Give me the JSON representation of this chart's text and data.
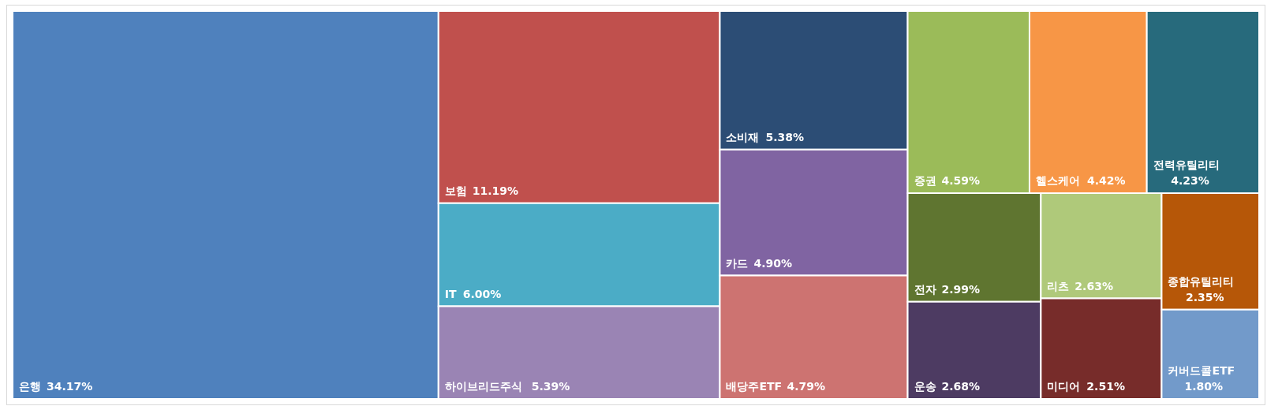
{
  "chart_data": {
    "type": "other",
    "categories": [
      "은행",
      "보험",
      "IT",
      "하이브리드주식",
      "소비재",
      "카드",
      "배당주ETF",
      "증권",
      "헬스케어",
      "전력유틸리티",
      "전자",
      "운송",
      "리츠",
      "미디어",
      "종합유틸리티",
      "커버드콜ETF"
    ],
    "values": [
      34.17,
      11.19,
      6.0,
      5.39,
      5.38,
      4.9,
      4.79,
      4.59,
      4.42,
      4.23,
      2.99,
      2.68,
      2.63,
      2.51,
      2.35,
      1.8
    ],
    "value_labels": [
      "34.17%",
      "11.19%",
      "6.00%",
      "5.39%",
      "5.38%",
      "4.90%",
      "4.79%",
      "4.59%",
      "4.42%",
      "4.23%",
      "2.99%",
      "2.68%",
      "2.63%",
      "2.51%",
      "2.35%",
      "1.80%"
    ],
    "colors": [
      "#4f81bd",
      "#c0504d",
      "#4bacc6",
      "#9a84b4",
      "#2c4d75",
      "#8064a2",
      "#cd7371",
      "#9bbb59",
      "#f79646",
      "#276a7c",
      "#5f7530",
      "#4d3b62",
      "#afc97a",
      "#772c2a",
      "#b65708",
      "#729aca"
    ]
  }
}
